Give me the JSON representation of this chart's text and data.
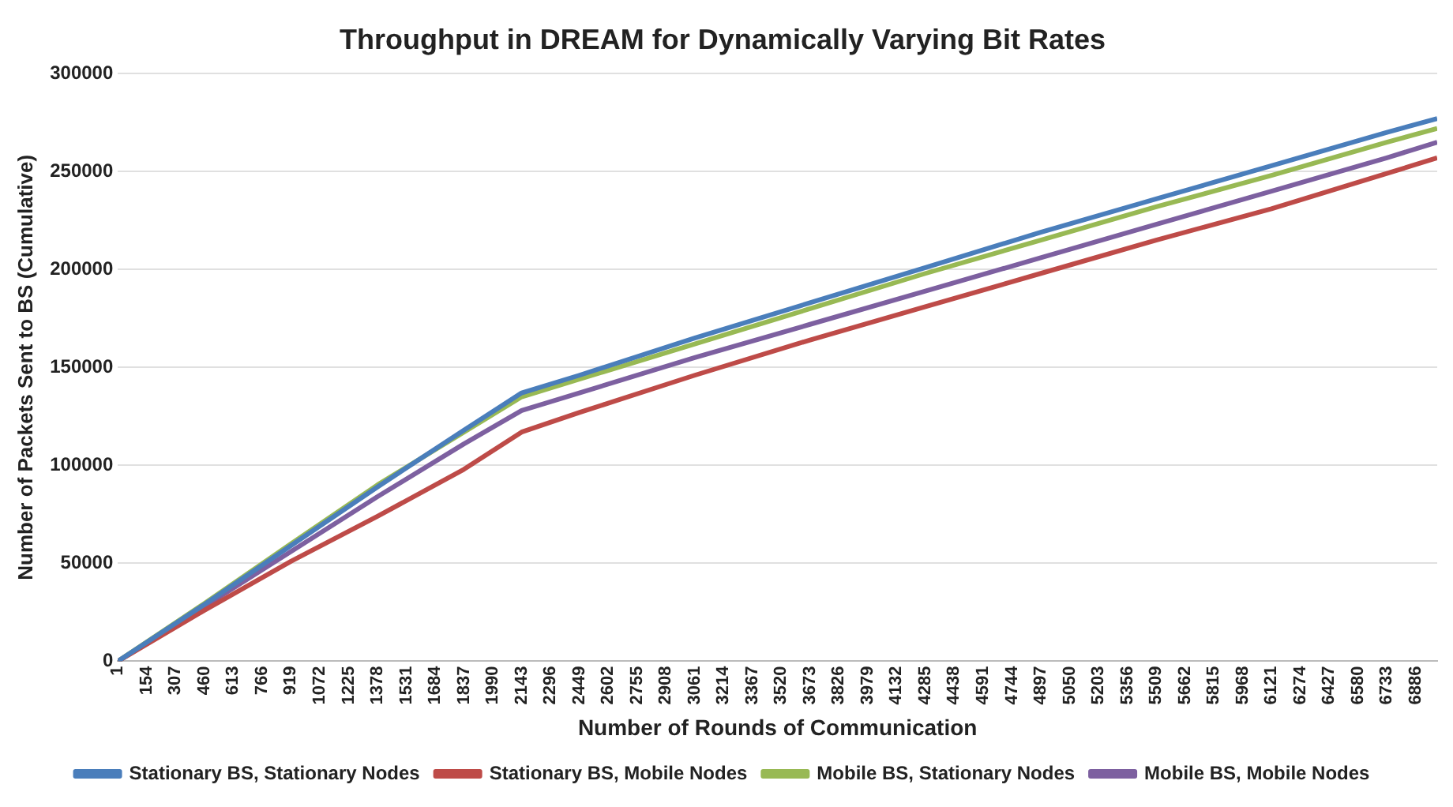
{
  "chart_data": {
    "type": "line",
    "title": "Throughput in DREAM for Dynamically Varying Bit Rates",
    "xlabel": "Number of Rounds of Communication",
    "ylabel": "Number of Packets Sent to BS (Cumulative)",
    "x": [
      1,
      460,
      919,
      1378,
      1837,
      2143,
      2449,
      3061,
      3673,
      4285,
      4897,
      5509,
      6121,
      6733,
      7000
    ],
    "series": [
      {
        "name": "Stationary BS, Stationary Nodes",
        "color": "#4a7ebb",
        "values": [
          0,
          29000,
          59000,
          89000,
          118000,
          137000,
          146000,
          165000,
          183000,
          201000,
          219000,
          236000,
          253000,
          270000,
          277000
        ]
      },
      {
        "name": "Stationary BS, Mobile Nodes",
        "color": "#be4b48",
        "values": [
          0,
          26000,
          51000,
          74000,
          98000,
          117000,
          127000,
          146000,
          164000,
          181000,
          198000,
          215000,
          231000,
          249000,
          257000
        ]
      },
      {
        "name": "Mobile BS, Stationary Nodes",
        "color": "#98b954",
        "values": [
          0,
          29500,
          60000,
          90000,
          117000,
          135000,
          144000,
          162000,
          180000,
          198000,
          215000,
          232000,
          248000,
          265000,
          272000
        ]
      },
      {
        "name": "Mobile BS, Mobile Nodes",
        "color": "#7d60a0",
        "values": [
          0,
          28000,
          56000,
          84000,
          111000,
          128000,
          137000,
          155000,
          172000,
          189000,
          206000,
          223000,
          240000,
          257000,
          265000
        ]
      }
    ],
    "xlim": [
      1,
      7000
    ],
    "xticks": [
      1,
      154,
      307,
      460,
      613,
      766,
      919,
      1072,
      1225,
      1378,
      1531,
      1684,
      1837,
      1990,
      2143,
      2296,
      2449,
      2602,
      2755,
      2908,
      3061,
      3214,
      3367,
      3520,
      3673,
      3826,
      3979,
      4132,
      4285,
      4438,
      4591,
      4744,
      4897,
      5050,
      5203,
      5356,
      5509,
      5662,
      5815,
      5968,
      6121,
      6274,
      6427,
      6580,
      6733,
      6886
    ],
    "ylim": [
      0,
      300000
    ],
    "yticks": [
      0,
      50000,
      100000,
      150000,
      200000,
      250000,
      300000
    ],
    "grid": "y",
    "legend": "bottom",
    "marker": "none",
    "line_style": "solid"
  }
}
